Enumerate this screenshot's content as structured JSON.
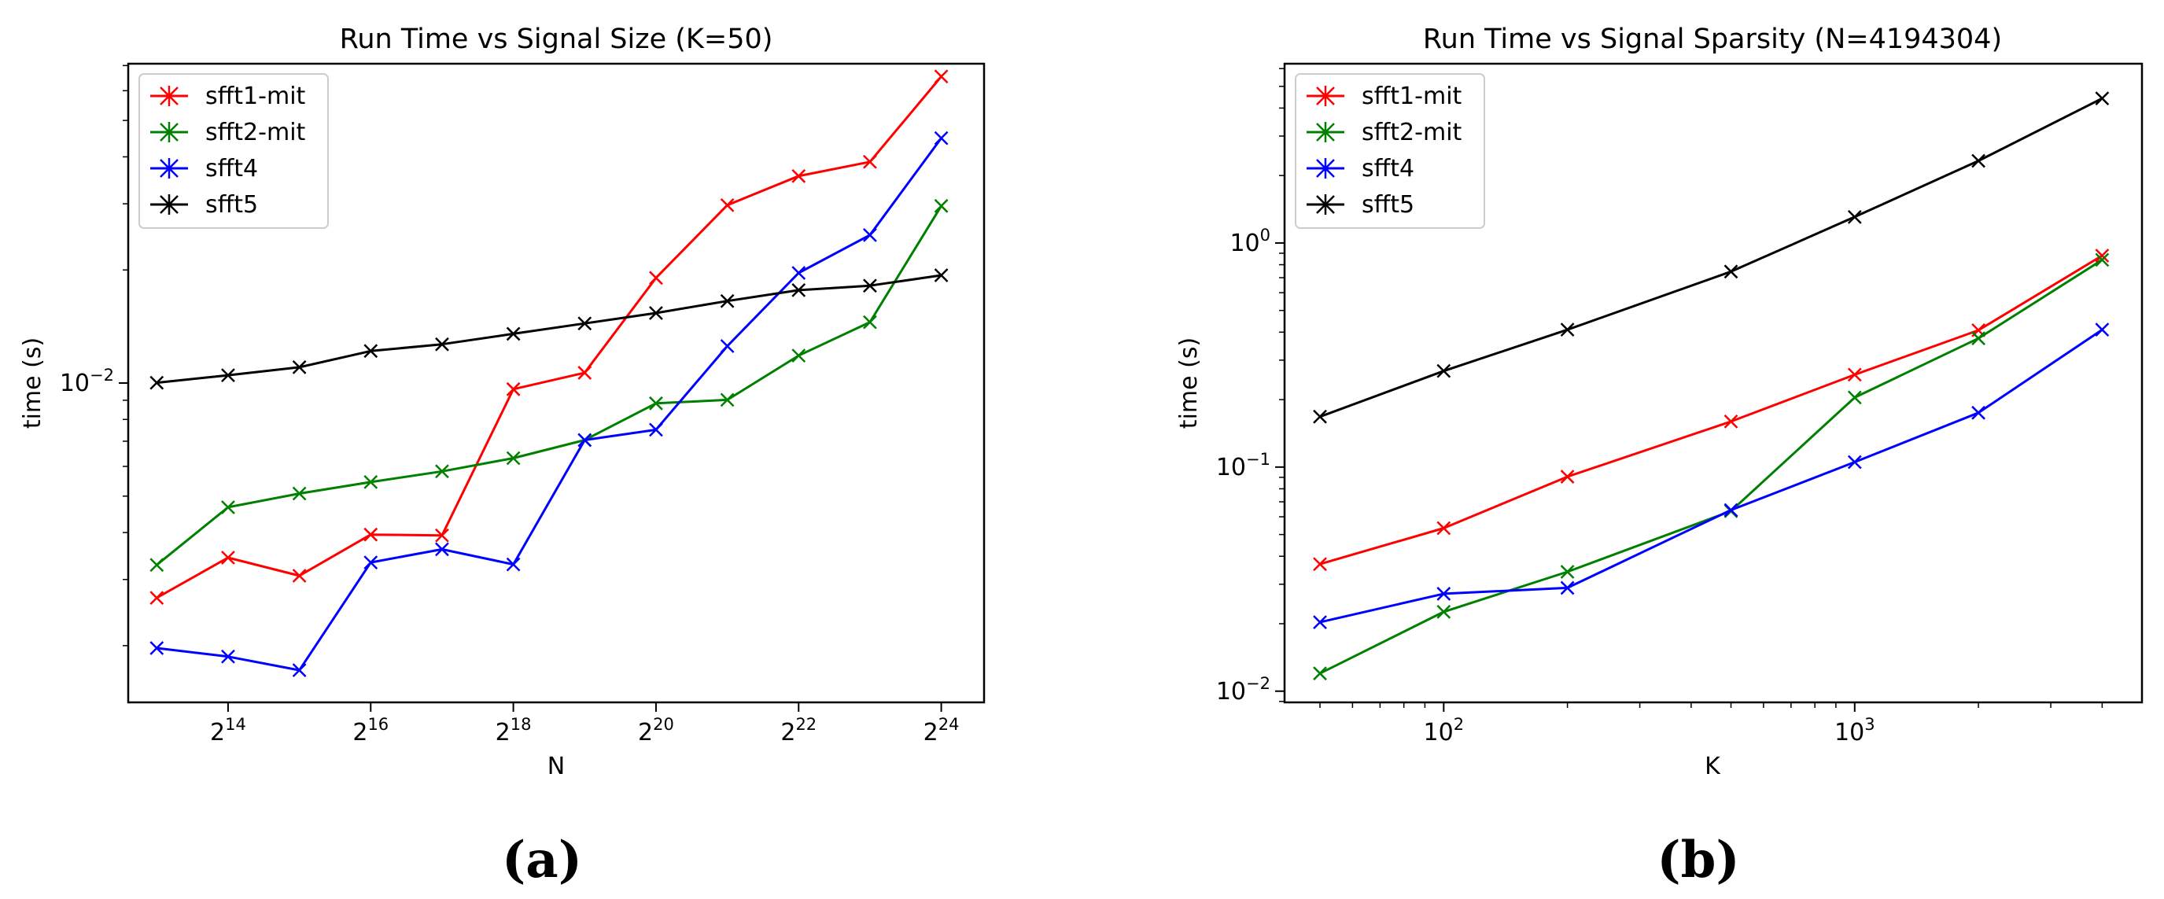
{
  "chart_data": [
    {
      "type": "line",
      "title": "Run Time vs Signal Size (K=50)",
      "xlabel": "N",
      "ylabel": "time (s)",
      "xscale": "log2",
      "yscale": "log10",
      "xlim_log2": [
        12.6,
        24.6
      ],
      "ylim_log10": [
        -2.85,
        -1.15
      ],
      "x_log2": [
        13,
        14,
        15,
        16,
        17,
        18,
        19,
        20,
        21,
        22,
        23,
        24
      ],
      "xticks": [
        {
          "base": "2",
          "exp": "14"
        },
        {
          "base": "2",
          "exp": "16"
        },
        {
          "base": "2",
          "exp": "18"
        },
        {
          "base": "2",
          "exp": "20"
        },
        {
          "base": "2",
          "exp": "22"
        },
        {
          "base": "2",
          "exp": "24"
        }
      ],
      "xtick_exps": [
        14,
        16,
        18,
        20,
        22,
        24
      ],
      "yticks": [
        {
          "base": "10",
          "exp": "−2"
        }
      ],
      "ytick_exps": [
        -2
      ],
      "legend_loc": "upper left",
      "caption": "(a)",
      "series": [
        {
          "name": "sfft1-mit",
          "color": "#ff0000",
          "values": [
            0.00268,
            0.00343,
            0.00307,
            0.00395,
            0.00393,
            0.00963,
            0.01065,
            0.01905,
            0.02975,
            0.03556,
            0.03879,
            0.06546
          ]
        },
        {
          "name": "sfft2-mit",
          "color": "#008000",
          "values": [
            0.00328,
            0.00467,
            0.00508,
            0.00545,
            0.00582,
            0.00631,
            0.00705,
            0.00883,
            0.00902,
            0.01183,
            0.01452,
            0.02961
          ]
        },
        {
          "name": "sfft4",
          "color": "#0000ff",
          "values": [
            0.00197,
            0.00187,
            0.00172,
            0.00333,
            0.00361,
            0.00329,
            0.00705,
            0.00751,
            0.01254,
            0.01964,
            0.02477,
            0.04487
          ]
        },
        {
          "name": "sfft5",
          "color": "#000000",
          "values": [
            0.01002,
            0.01049,
            0.01102,
            0.01217,
            0.01268,
            0.01352,
            0.01441,
            0.01536,
            0.01653,
            0.01767,
            0.01816,
            0.01936
          ]
        }
      ]
    },
    {
      "type": "line",
      "title": "Run Time vs Signal Sparsity (N=4194304)",
      "xlabel": "K",
      "ylabel": "time (s)",
      "xscale": "log10",
      "yscale": "log10",
      "xlim": [
        41,
        5000
      ],
      "ylim_log10": [
        -2.05,
        0.8
      ],
      "x": [
        50,
        100,
        200,
        500,
        1000,
        2000,
        4000
      ],
      "xticks": [
        {
          "base": "10",
          "exp": "2"
        },
        {
          "base": "10",
          "exp": "3"
        }
      ],
      "xtick_exps": [
        2,
        3
      ],
      "yticks": [
        {
          "base": "10",
          "exp": "−2"
        },
        {
          "base": "10",
          "exp": "−1"
        },
        {
          "base": "10",
          "exp": "0"
        }
      ],
      "ytick_exps": [
        -2,
        -1,
        0
      ],
      "legend_loc": "upper left",
      "caption": "(b)",
      "series": [
        {
          "name": "sfft1-mit",
          "color": "#ff0000",
          "values": [
            0.0369,
            0.0534,
            0.0906,
            0.1597,
            0.2583,
            0.4078,
            0.8779
          ]
        },
        {
          "name": "sfft2-mit",
          "color": "#008000",
          "values": [
            0.012,
            0.0226,
            0.0341,
            0.0636,
            0.2044,
            0.3753,
            0.8406
          ]
        },
        {
          "name": "sfft4",
          "color": "#0000ff",
          "values": [
            0.0203,
            0.0272,
            0.0289,
            0.0643,
            0.1053,
            0.1747,
            0.4103
          ]
        },
        {
          "name": "sfft5",
          "color": "#000000",
          "values": [
            0.1678,
            0.2684,
            0.4103,
            0.7452,
            1.3065,
            2.3248,
            4.4172
          ]
        }
      ]
    }
  ]
}
